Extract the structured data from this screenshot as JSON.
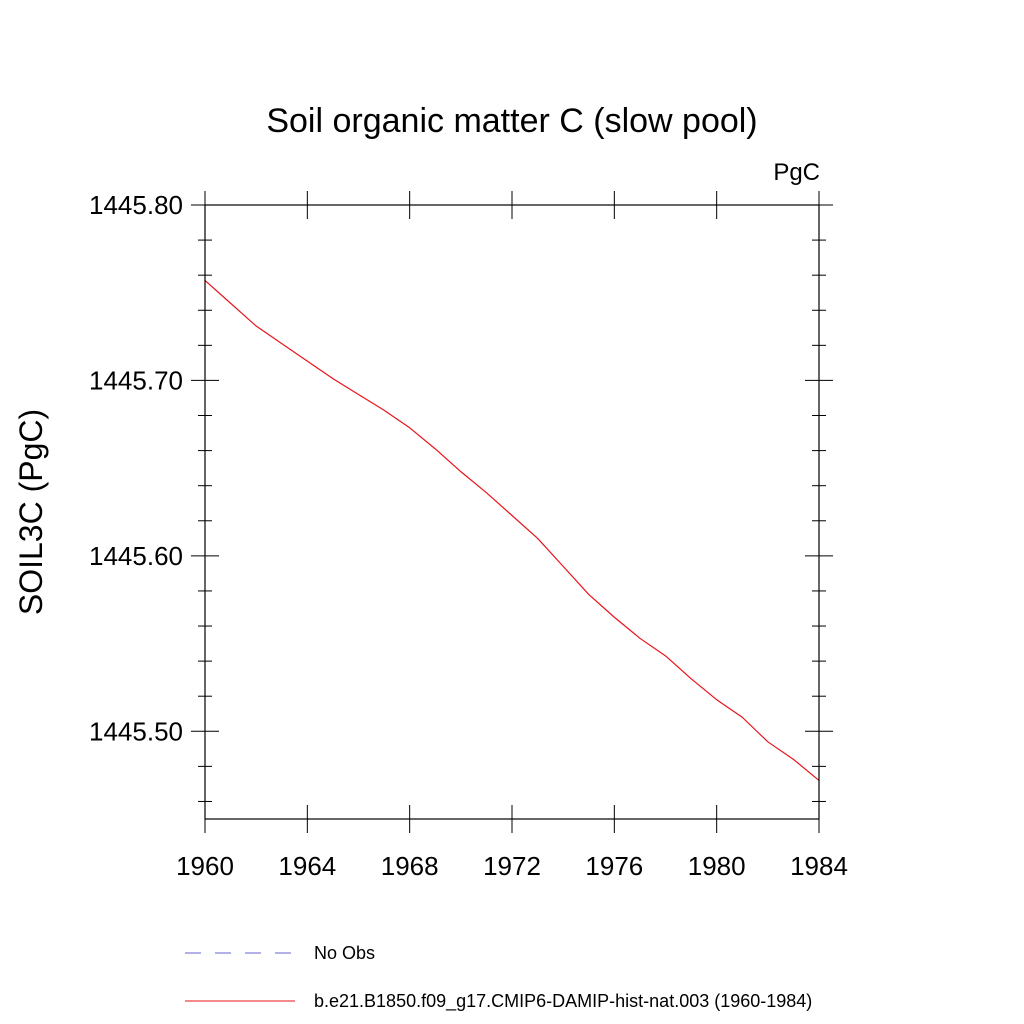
{
  "chart_data": {
    "type": "line",
    "title": "Soil organic matter C (slow pool)",
    "units": "PgC",
    "ylabel": "SOIL3C  (PgC)",
    "xlabel": "",
    "xlim": [
      1960,
      1984
    ],
    "ylim": [
      1445.45,
      1445.8
    ],
    "x_ticks": [
      1960,
      1964,
      1968,
      1972,
      1976,
      1980,
      1984
    ],
    "x_tick_labels": [
      "1960",
      "1964",
      "1968",
      "1972",
      "1976",
      "1980",
      "1984"
    ],
    "y_ticks": [
      1445.5,
      1445.6,
      1445.7,
      1445.8
    ],
    "y_tick_labels": [
      "1445.50",
      "1445.60",
      "1445.70",
      "1445.80"
    ],
    "y_minor_step": 0.02,
    "x_minor_step": 1,
    "grid": false,
    "legend_position": "bottom",
    "series": [
      {
        "name": "b.e21.B1850.f09_g17.CMIP6-DAMIP-hist-nat.003 (1960-1984)",
        "color": "#e8141a",
        "dash": "solid",
        "x": [
          1960,
          1961,
          1962,
          1963,
          1964,
          1965,
          1966,
          1967,
          1968,
          1969,
          1970,
          1971,
          1972,
          1973,
          1974,
          1975,
          1976,
          1977,
          1978,
          1979,
          1980,
          1981,
          1982,
          1983,
          1984
        ],
        "values": [
          1445.757,
          1445.744,
          1445.731,
          1445.721,
          1445.711,
          1445.701,
          1445.692,
          1445.683,
          1445.673,
          1445.661,
          1445.648,
          1445.636,
          1445.623,
          1445.61,
          1445.594,
          1445.578,
          1445.565,
          1445.553,
          1445.543,
          1445.53,
          1445.518,
          1445.508,
          1445.494,
          1445.484,
          1445.472
        ]
      }
    ],
    "legend": [
      {
        "label": "No Obs",
        "color": "#6666cc",
        "dash": "dashed"
      },
      {
        "label": "b.e21.B1850.f09_g17.CMIP6-DAMIP-hist-nat.003 (1960-1984)",
        "color": "#e8141a",
        "dash": "solid"
      }
    ]
  }
}
